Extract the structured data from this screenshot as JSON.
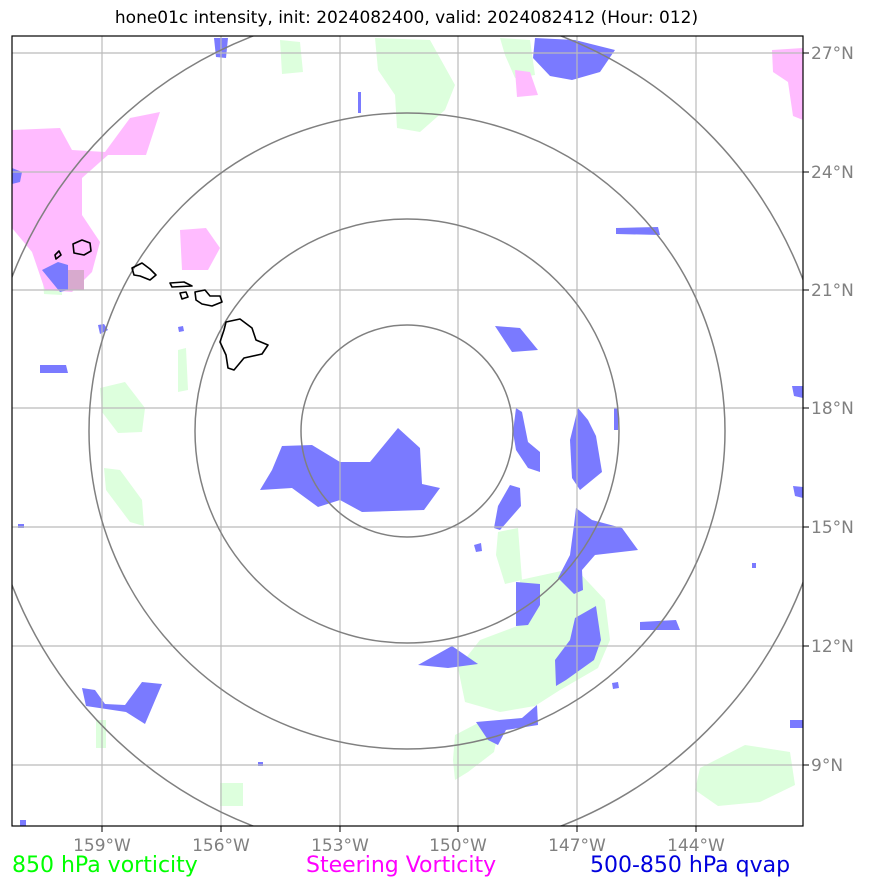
{
  "title": "hone01c intensity, init: 2024082400, valid: 2024082412 (Hour: 012)",
  "legend": {
    "green": "850 hPa vorticity",
    "magenta": "Steering Vorticity",
    "blue": "500-850 hPa qvap"
  },
  "colors": {
    "green": "#00ff00",
    "magenta": "#ff00ff",
    "blue": "#0000dd",
    "fill_green": "#ddffdd",
    "fill_magenta": "#ffbbff",
    "fill_blue": "#7a7aff",
    "grid": "#bbbbbb",
    "rings": "#808080"
  },
  "lat_labels": [
    "27°N",
    "24°N",
    "21°N",
    "18°N",
    "15°N",
    "12°N",
    "9°N"
  ],
  "lon_labels": [
    "159°W",
    "156°W",
    "153°W",
    "150°W",
    "147°W",
    "144°W"
  ]
}
